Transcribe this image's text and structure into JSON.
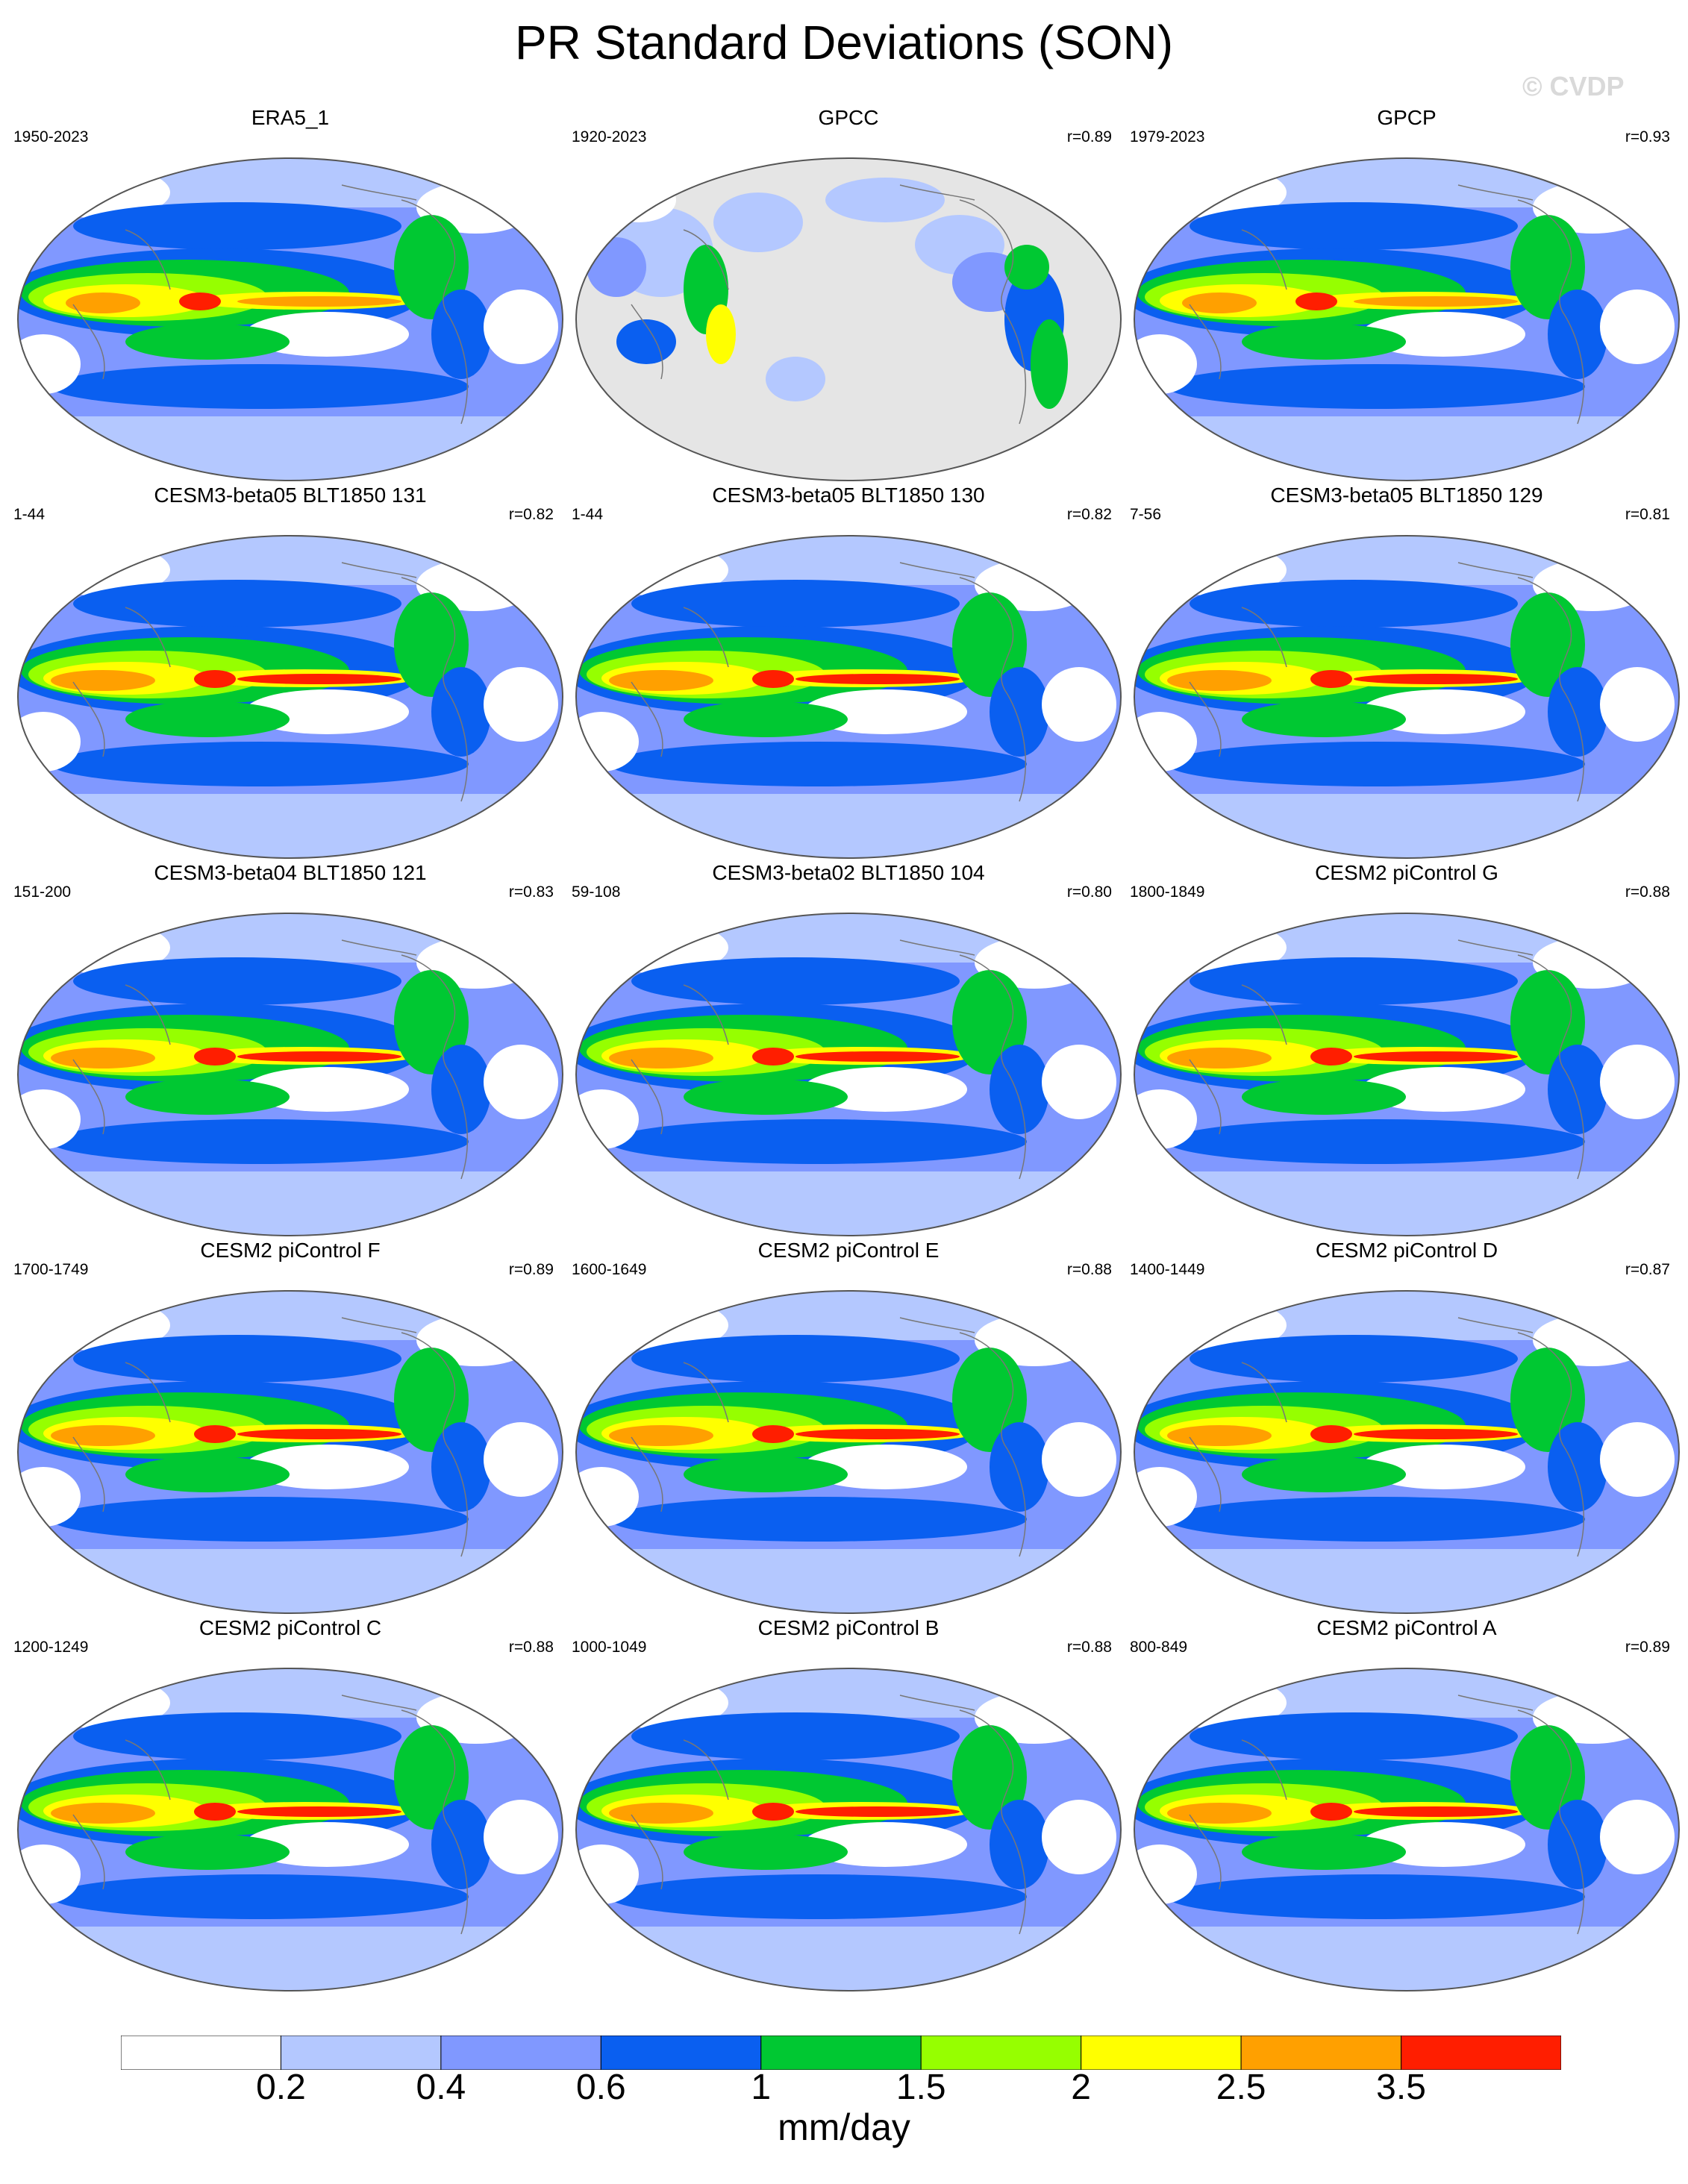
{
  "title": "PR Standard Deviations (SON)",
  "watermark": "© CVDP",
  "panels": [
    {
      "name": "ERA5_1",
      "period": "1950-2023",
      "r": "",
      "style": "obs"
    },
    {
      "name": "GPCC",
      "period": "1920-2023",
      "r": "r=0.89",
      "style": "land"
    },
    {
      "name": "GPCP",
      "period": "1979-2023",
      "r": "r=0.93",
      "style": "obs"
    },
    {
      "name": "CESM3-beta05 BLT1850 131",
      "period": "1-44",
      "r": "r=0.82",
      "style": "model"
    },
    {
      "name": "CESM3-beta05 BLT1850 130",
      "period": "1-44",
      "r": "r=0.82",
      "style": "model"
    },
    {
      "name": "CESM3-beta05 BLT1850 129",
      "period": "7-56",
      "r": "r=0.81",
      "style": "model"
    },
    {
      "name": "CESM3-beta04 BLT1850 121",
      "period": "151-200",
      "r": "r=0.83",
      "style": "model"
    },
    {
      "name": "CESM3-beta02 BLT1850 104",
      "period": "59-108",
      "r": "r=0.80",
      "style": "model"
    },
    {
      "name": "CESM2 piControl G",
      "period": "1800-1849",
      "r": "r=0.88",
      "style": "model"
    },
    {
      "name": "CESM2 piControl F",
      "period": "1700-1749",
      "r": "r=0.89",
      "style": "model"
    },
    {
      "name": "CESM2 piControl E",
      "period": "1600-1649",
      "r": "r=0.88",
      "style": "model"
    },
    {
      "name": "CESM2 piControl D",
      "period": "1400-1449",
      "r": "r=0.87",
      "style": "model"
    },
    {
      "name": "CESM2 piControl C",
      "period": "1200-1249",
      "r": "r=0.88",
      "style": "model"
    },
    {
      "name": "CESM2 piControl B",
      "period": "1000-1049",
      "r": "r=0.88",
      "style": "model"
    },
    {
      "name": "CESM2 piControl A",
      "period": "800-849",
      "r": "r=0.89",
      "style": "model"
    }
  ],
  "colorbar": {
    "colors": [
      "#ffffff",
      "#b4c8ff",
      "#8098ff",
      "#0a5ff0",
      "#00c832",
      "#96ff00",
      "#ffff00",
      "#ffa000",
      "#ff1e00"
    ],
    "labels": [
      "0.2",
      "0.4",
      "0.6",
      "1",
      "1.5",
      "2",
      "2.5",
      "3.5"
    ],
    "units": "mm/day"
  },
  "land_fill": "#e5e5e5"
}
